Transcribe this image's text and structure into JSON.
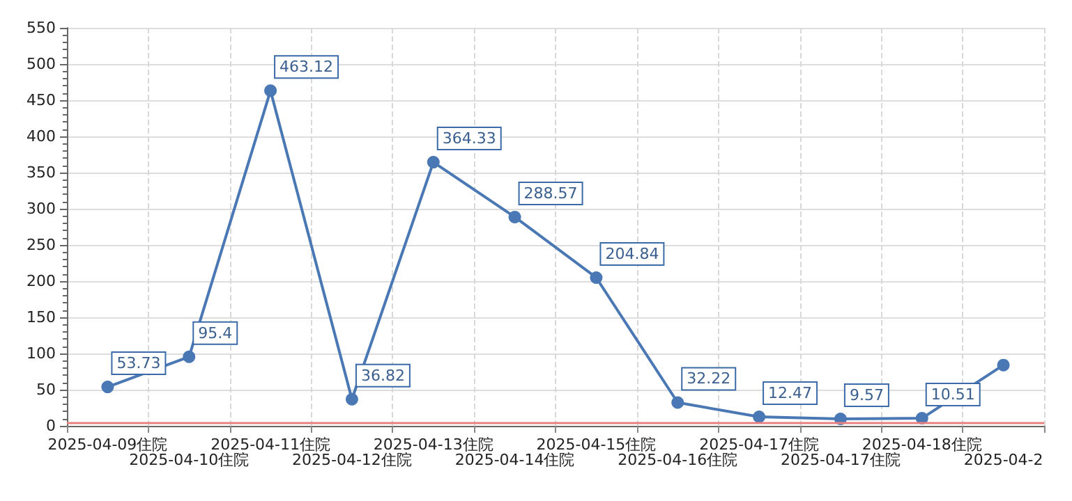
{
  "chart_data": {
    "type": "line",
    "categories": [
      "2025-04-09住院",
      "2025-04-10住院",
      "2025-04-11住院",
      "2025-04-12住院",
      "2025-04-13住院",
      "2025-04-14住院",
      "2025-04-15住院",
      "2025-04-16住院",
      "2025-04-17住院",
      "2025-04-17住院",
      "2025-04-18住院",
      "2025-04-2"
    ],
    "series": [
      {
        "color": "#4a78b4",
        "values": [
          53.73,
          95.4,
          463.12,
          36.82,
          364.33,
          288.57,
          204.84,
          32.22,
          12.47,
          9.57,
          10.51,
          84
        ],
        "value_labels": [
          "53.73",
          "95.4",
          "463.12",
          "36.82",
          "364.33",
          "288.57",
          "204.84",
          "32.22",
          "12.47",
          "9.57",
          "10.51",
          null
        ]
      }
    ],
    "ylim": [
      0,
      550
    ],
    "yticks": [
      0,
      50,
      100,
      150,
      200,
      250,
      300,
      350,
      400,
      450,
      500,
      550
    ],
    "grid": true,
    "marker": "circle",
    "line_style": "solid",
    "ref_lines": [
      {
        "axis": "y",
        "value": 5,
        "color": "#e88080",
        "line_style": "solid"
      }
    ]
  }
}
